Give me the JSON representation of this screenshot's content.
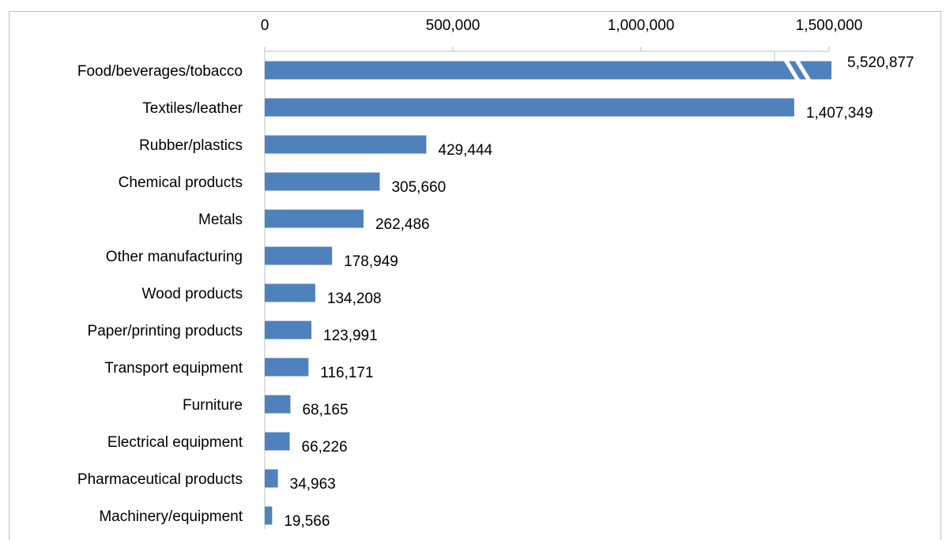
{
  "caption": "",
  "chart_data": {
    "type": "bar",
    "orientation": "horizontal",
    "title": "",
    "xlabel": "",
    "ylabel": "",
    "xlim": [
      0,
      1500000
    ],
    "x_ticks": [
      0,
      500000,
      1000000,
      1500000
    ],
    "x_tick_labels": [
      "0",
      "500,000",
      "1,000,000",
      "1,500,000"
    ],
    "x_axis_position": "top",
    "grid": false,
    "axis_break_on_first_bar": true,
    "bar_color": "#4f81bd",
    "categories": [
      "Food/beverages/tobacco",
      "Textiles/leather",
      "Rubber/plastics",
      "Chemical products",
      "Metals",
      "Other manufacturing",
      "Wood products",
      "Paper/printing products",
      "Transport equipment",
      "Furniture",
      "Electrical equipment",
      "Pharmaceutical products",
      "Machinery/equipment"
    ],
    "values": [
      5520877,
      1407349,
      429444,
      305660,
      262486,
      178949,
      134208,
      123991,
      116171,
      68165,
      66226,
      34963,
      19566
    ],
    "data_labels": [
      "5,520,877",
      "1,407,349",
      "429,444",
      "305,660",
      "262,486",
      "178,949",
      "134,208",
      "123,991",
      "116,171",
      "68,165",
      "66,226",
      "34,963",
      "19,566"
    ]
  }
}
